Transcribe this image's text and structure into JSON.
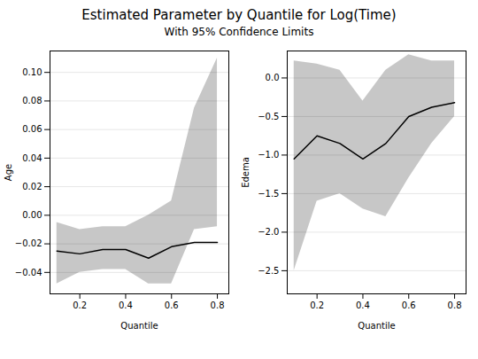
{
  "title": "Estimated Parameter by Quantile for Log(Time)",
  "subtitle": "With 95% Confidence Limits",
  "chart_data": [
    {
      "type": "line",
      "xlabel": "Quantile",
      "ylabel": "Age",
      "x": [
        0.1,
        0.2,
        0.3,
        0.4,
        0.5,
        0.6,
        0.7,
        0.8
      ],
      "values": [
        -0.025,
        -0.027,
        -0.024,
        -0.024,
        -0.03,
        -0.022,
        -0.019,
        -0.019
      ],
      "lower": [
        -0.048,
        -0.04,
        -0.038,
        -0.038,
        -0.048,
        -0.048,
        -0.01,
        -0.008
      ],
      "upper": [
        -0.005,
        -0.01,
        -0.008,
        -0.008,
        0.0,
        0.01,
        0.075,
        0.11
      ],
      "xlim": [
        0.07,
        0.85
      ],
      "xticks": [
        0.2,
        0.4,
        0.6,
        0.8
      ],
      "ylim": [
        -0.055,
        0.115
      ],
      "yticks": [
        {
          "value": -0.04,
          "label": "−0.04"
        },
        {
          "value": -0.02,
          "label": "−0.02"
        },
        {
          "value": 0,
          "label": "0.00"
        },
        {
          "value": 0.02,
          "label": "0.02"
        },
        {
          "value": 0.04,
          "label": "0.04"
        },
        {
          "value": 0.06,
          "label": "0.06"
        },
        {
          "value": 0.08,
          "label": "0.08"
        },
        {
          "value": 0.1,
          "label": "0.10"
        }
      ],
      "grid": "y"
    },
    {
      "type": "line",
      "xlabel": "Quantile",
      "ylabel": "Edema",
      "x": [
        0.1,
        0.2,
        0.3,
        0.4,
        0.5,
        0.6,
        0.7,
        0.8
      ],
      "values": [
        -1.05,
        -0.75,
        -0.85,
        -1.05,
        -0.85,
        -0.5,
        -0.38,
        -0.32
      ],
      "lower": [
        -2.5,
        -1.6,
        -1.5,
        -1.7,
        -1.8,
        -1.3,
        -0.85,
        -0.5
      ],
      "upper": [
        0.22,
        0.18,
        0.1,
        -0.3,
        0.1,
        0.3,
        0.22,
        0.22
      ],
      "xlim": [
        0.07,
        0.85
      ],
      "xticks": [
        0.2,
        0.4,
        0.6,
        0.8
      ],
      "ylim": [
        -2.8,
        0.35
      ],
      "yticks": [
        {
          "value": 0,
          "label": "0.0"
        },
        {
          "value": -0.5,
          "label": "−0.5"
        },
        {
          "value": -1,
          "label": "−1.0"
        },
        {
          "value": -1.5,
          "label": "−1.5"
        },
        {
          "value": -2,
          "label": "−2.0"
        },
        {
          "value": -2.5,
          "label": "−2.5"
        }
      ],
      "grid": "y"
    }
  ]
}
